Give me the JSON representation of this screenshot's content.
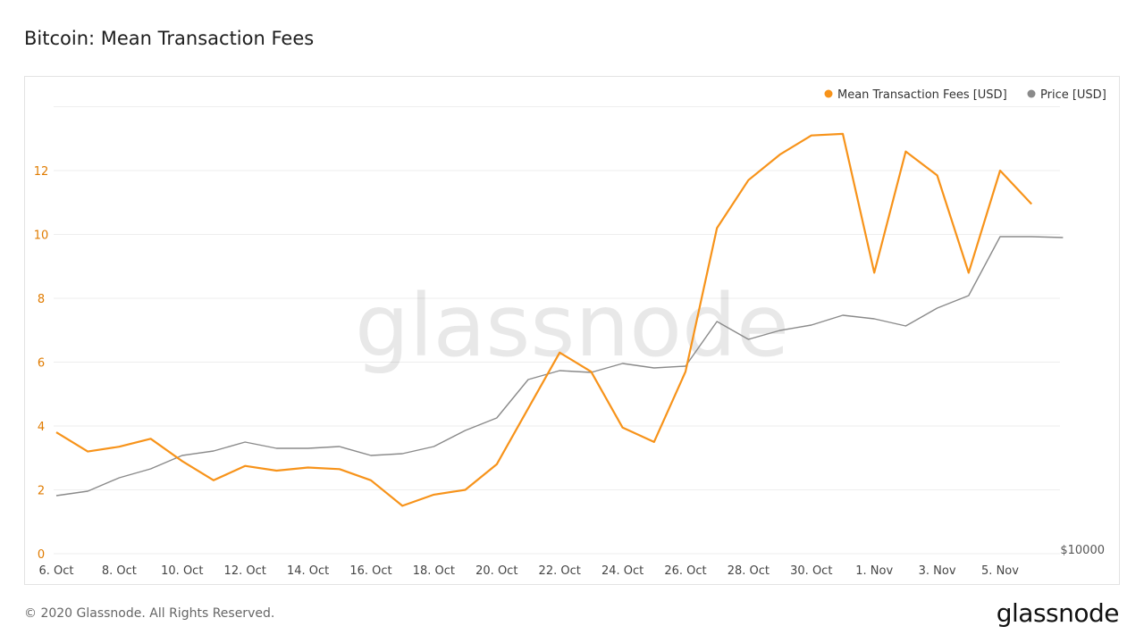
{
  "title": "Bitcoin: Mean Transaction Fees",
  "footer": "© 2020 Glassnode. All Rights Reserved.",
  "brand": "glassnode",
  "watermark": "glassnode",
  "colors": {
    "fees": "#f7931a",
    "price": "#8a8a8a",
    "grid": "#eeeeee",
    "axis_left": "#e07b00"
  },
  "chart_data": {
    "type": "line",
    "title": "Bitcoin: Mean Transaction Fees",
    "legend_position": "top-right",
    "grid": true,
    "x_tick_labels": [
      "6. Oct",
      "8. Oct",
      "10. Oct",
      "12. Oct",
      "14. Oct",
      "16. Oct",
      "18. Oct",
      "20. Oct",
      "22. Oct",
      "24. Oct",
      "26. Oct",
      "28. Oct",
      "30. Oct",
      "1. Nov",
      "3. Nov",
      "5. Nov"
    ],
    "x_tick_days": [
      0,
      2,
      4,
      6,
      8,
      10,
      12,
      14,
      16,
      18,
      20,
      22,
      24,
      26,
      28,
      30
    ],
    "y_left_ticks": [
      "0",
      "2",
      "4",
      "6",
      "8",
      "10",
      "12"
    ],
    "y_left_range": [
      0,
      12
    ],
    "y_right_tick_label": "$10000",
    "series": [
      {
        "name": "Mean Transaction Fees [USD]",
        "axis": "left",
        "color": "#f7931a",
        "x_days": [
          0,
          1,
          2,
          3,
          4,
          5,
          6,
          7,
          8,
          9,
          10,
          11,
          12,
          13,
          14,
          15,
          16,
          17,
          18,
          19,
          20,
          21,
          22,
          23,
          24,
          25,
          26,
          27,
          28,
          29,
          30,
          31
        ],
        "values": [
          3.8,
          3.2,
          3.35,
          3.6,
          2.9,
          2.3,
          2.75,
          2.6,
          2.7,
          2.65,
          2.3,
          1.5,
          1.85,
          2.0,
          2.8,
          4.55,
          6.3,
          5.7,
          3.95,
          3.5,
          5.7,
          10.2,
          11.7,
          12.5,
          13.1,
          13.15,
          8.8,
          12.6,
          11.85,
          8.8,
          12.0,
          10.95
        ]
      },
      {
        "name": "Price [USD]",
        "axis": "right",
        "color": "#8a8a8a",
        "x_days": [
          0,
          1,
          2,
          3,
          4,
          5,
          6,
          7,
          8,
          9,
          10,
          11,
          12,
          13,
          14,
          15,
          16,
          17,
          18,
          19,
          20,
          21,
          22,
          23,
          24,
          25,
          26,
          27,
          28,
          29,
          30,
          31,
          32
        ],
        "values": [
          10650,
          10700,
          10850,
          10950,
          11100,
          11150,
          11250,
          11180,
          11180,
          11200,
          11100,
          11120,
          11200,
          11380,
          11520,
          11950,
          12050,
          12030,
          12130,
          12080,
          12100,
          12600,
          12400,
          12500,
          12560,
          12670,
          12630,
          12550,
          12750,
          12890,
          13550,
          13550,
          13540
        ]
      }
    ]
  }
}
